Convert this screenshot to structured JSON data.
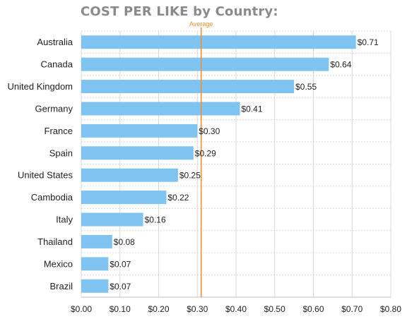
{
  "chart_data": {
    "type": "bar",
    "orientation": "horizontal",
    "title": "COST PER LIKE by Country:",
    "categories": [
      "Australia",
      "Canada",
      "United Kingdom",
      "Germany",
      "France",
      "Spain",
      "United States",
      "Cambodia",
      "Italy",
      "Thailand",
      "Mexico",
      "Brazil"
    ],
    "values": [
      0.71,
      0.64,
      0.55,
      0.41,
      0.3,
      0.29,
      0.25,
      0.22,
      0.16,
      0.08,
      0.07,
      0.07
    ],
    "value_labels": [
      "$0.71",
      "$0.64",
      "$0.55",
      "$0.41",
      "$0.30",
      "$0.29",
      "$0.25",
      "$0.22",
      "$0.16",
      "$0.08",
      "$0.07",
      "$0.07"
    ],
    "xlim": [
      0,
      0.8
    ],
    "xticks": [
      0,
      0.1,
      0.2,
      0.3,
      0.4,
      0.5,
      0.6,
      0.7,
      0.8
    ],
    "xtick_labels": [
      "$0.00",
      "$0.10",
      "$0.20",
      "$0.30",
      "$0.40",
      "$0.50",
      "$0.60",
      "$0.70",
      "$0.80"
    ],
    "average": {
      "label": "Average",
      "value": 0.31
    },
    "grid": true,
    "colors": {
      "bar": "#7fc4f0",
      "average_line": "#ef8c2b",
      "grid": "#d8d8d8",
      "title": "#8a8a8a"
    }
  }
}
